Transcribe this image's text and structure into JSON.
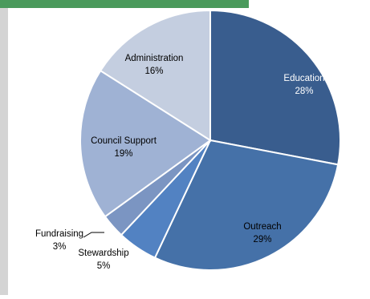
{
  "colors": {
    "left_bar": "#d4d4d4",
    "top_bar": "#4a9a5c",
    "slice_stroke": "#ffffff"
  },
  "chart_data": {
    "type": "pie",
    "title": "",
    "slices": [
      {
        "label": "Education",
        "value": 28,
        "display": "28%",
        "color": "#395d8e",
        "text_color": "#ffffff"
      },
      {
        "label": "Outreach",
        "value": 29,
        "display": "29%",
        "color": "#4571a8",
        "text_color": "#000000"
      },
      {
        "label": "Stewardship",
        "value": 5,
        "display": "5%",
        "color": "#5282c2",
        "text_color": "#000000"
      },
      {
        "label": "Fundraising",
        "value": 3,
        "display": "3%",
        "color": "#7b95c2",
        "text_color": "#000000"
      },
      {
        "label": "Council Support",
        "value": 19,
        "display": "19%",
        "color": "#9fb2d4",
        "text_color": "#000000"
      },
      {
        "label": "Administration",
        "value": 16,
        "display": "16%",
        "color": "#c4cee0",
        "text_color": "#000000"
      }
    ],
    "legend": "none"
  }
}
